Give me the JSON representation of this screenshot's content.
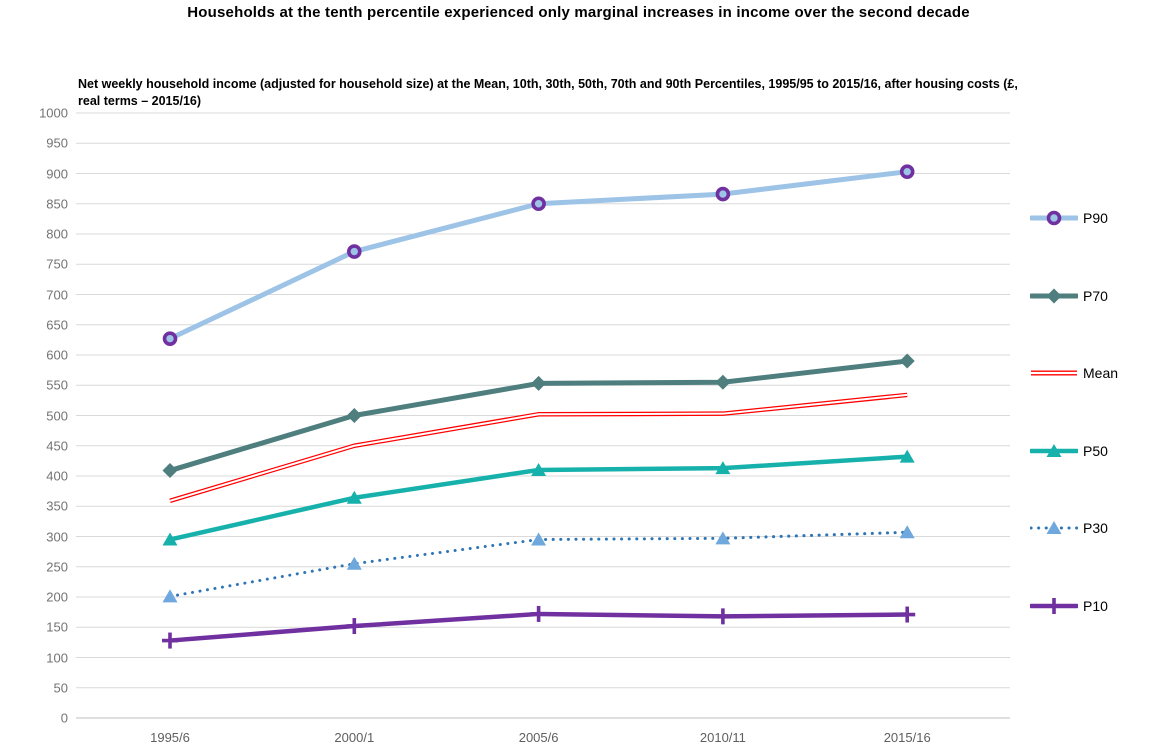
{
  "title": "Households at the tenth percentile experienced only marginal increases in income over the second decade",
  "subtitle": "Net weekly household income (adjusted for household size) at the Mean, 10th, 30th, 50th, 70th and 90th Percentiles, 1995/95 to 2015/16, after housing costs (£, real terms – 2015/16)",
  "colors": {
    "gridline": "#d9d9d9",
    "baseline": "#bfbfbf",
    "y_tick_text": "#737373",
    "x_tick_text": "#5f5f5f",
    "title_text": "#000000"
  },
  "chart_data": {
    "type": "line",
    "title": "Households at the tenth percentile experienced only marginal increases in income over the second decade",
    "subtitle": "Net weekly household income (adjusted for household size) at the Mean, 10th, 30th, 50th, 70th and 90th Percentiles, 1995/95 to 2015/16, after housing costs (£, real terms – 2015/16)",
    "xlabel": "",
    "ylabel": "",
    "ylim": [
      0,
      1000
    ],
    "y_ticks": [
      0,
      50,
      100,
      150,
      200,
      250,
      300,
      350,
      400,
      450,
      500,
      550,
      600,
      650,
      700,
      750,
      800,
      850,
      900,
      950,
      1000
    ],
    "grid": "horizontal",
    "legend_position": "right",
    "categories": [
      "1995/6",
      "2000/1",
      "2005/6",
      "2010/11",
      "2015/16"
    ],
    "series": [
      {
        "name": "P90",
        "values": [
          627,
          771,
          850,
          866,
          903
        ],
        "color": "#9DC3E6",
        "style": "solid",
        "line_width": 5,
        "marker": "ring-circle",
        "marker_color": "#7030A0"
      },
      {
        "name": "P70",
        "values": [
          409,
          500,
          553,
          555,
          590
        ],
        "color": "#4E7E7E",
        "style": "solid",
        "line_width": 5,
        "marker": "diamond",
        "marker_color": "#4E7E7E"
      },
      {
        "name": "Mean",
        "values": [
          359,
          450,
          502,
          503,
          534
        ],
        "color": "#FF0000",
        "style": "double",
        "line_width": 4.5,
        "marker": "none",
        "marker_color": "#FF0000"
      },
      {
        "name": "P50",
        "values": [
          295,
          364,
          410,
          413,
          432
        ],
        "color": "#17B1AB",
        "style": "solid",
        "line_width": 4.5,
        "marker": "triangle",
        "marker_color": "#17B1AB"
      },
      {
        "name": "P30",
        "values": [
          201,
          255,
          295,
          297,
          307
        ],
        "color": "#2E75B6",
        "style": "dotted",
        "line_width": 3,
        "marker": "triangle",
        "marker_color": "#6FA8DC"
      },
      {
        "name": "P10",
        "values": [
          128,
          152,
          172,
          168,
          171
        ],
        "color": "#7030A0",
        "style": "solid",
        "line_width": 4.5,
        "marker": "plus",
        "marker_color": "#7030A0"
      }
    ]
  }
}
